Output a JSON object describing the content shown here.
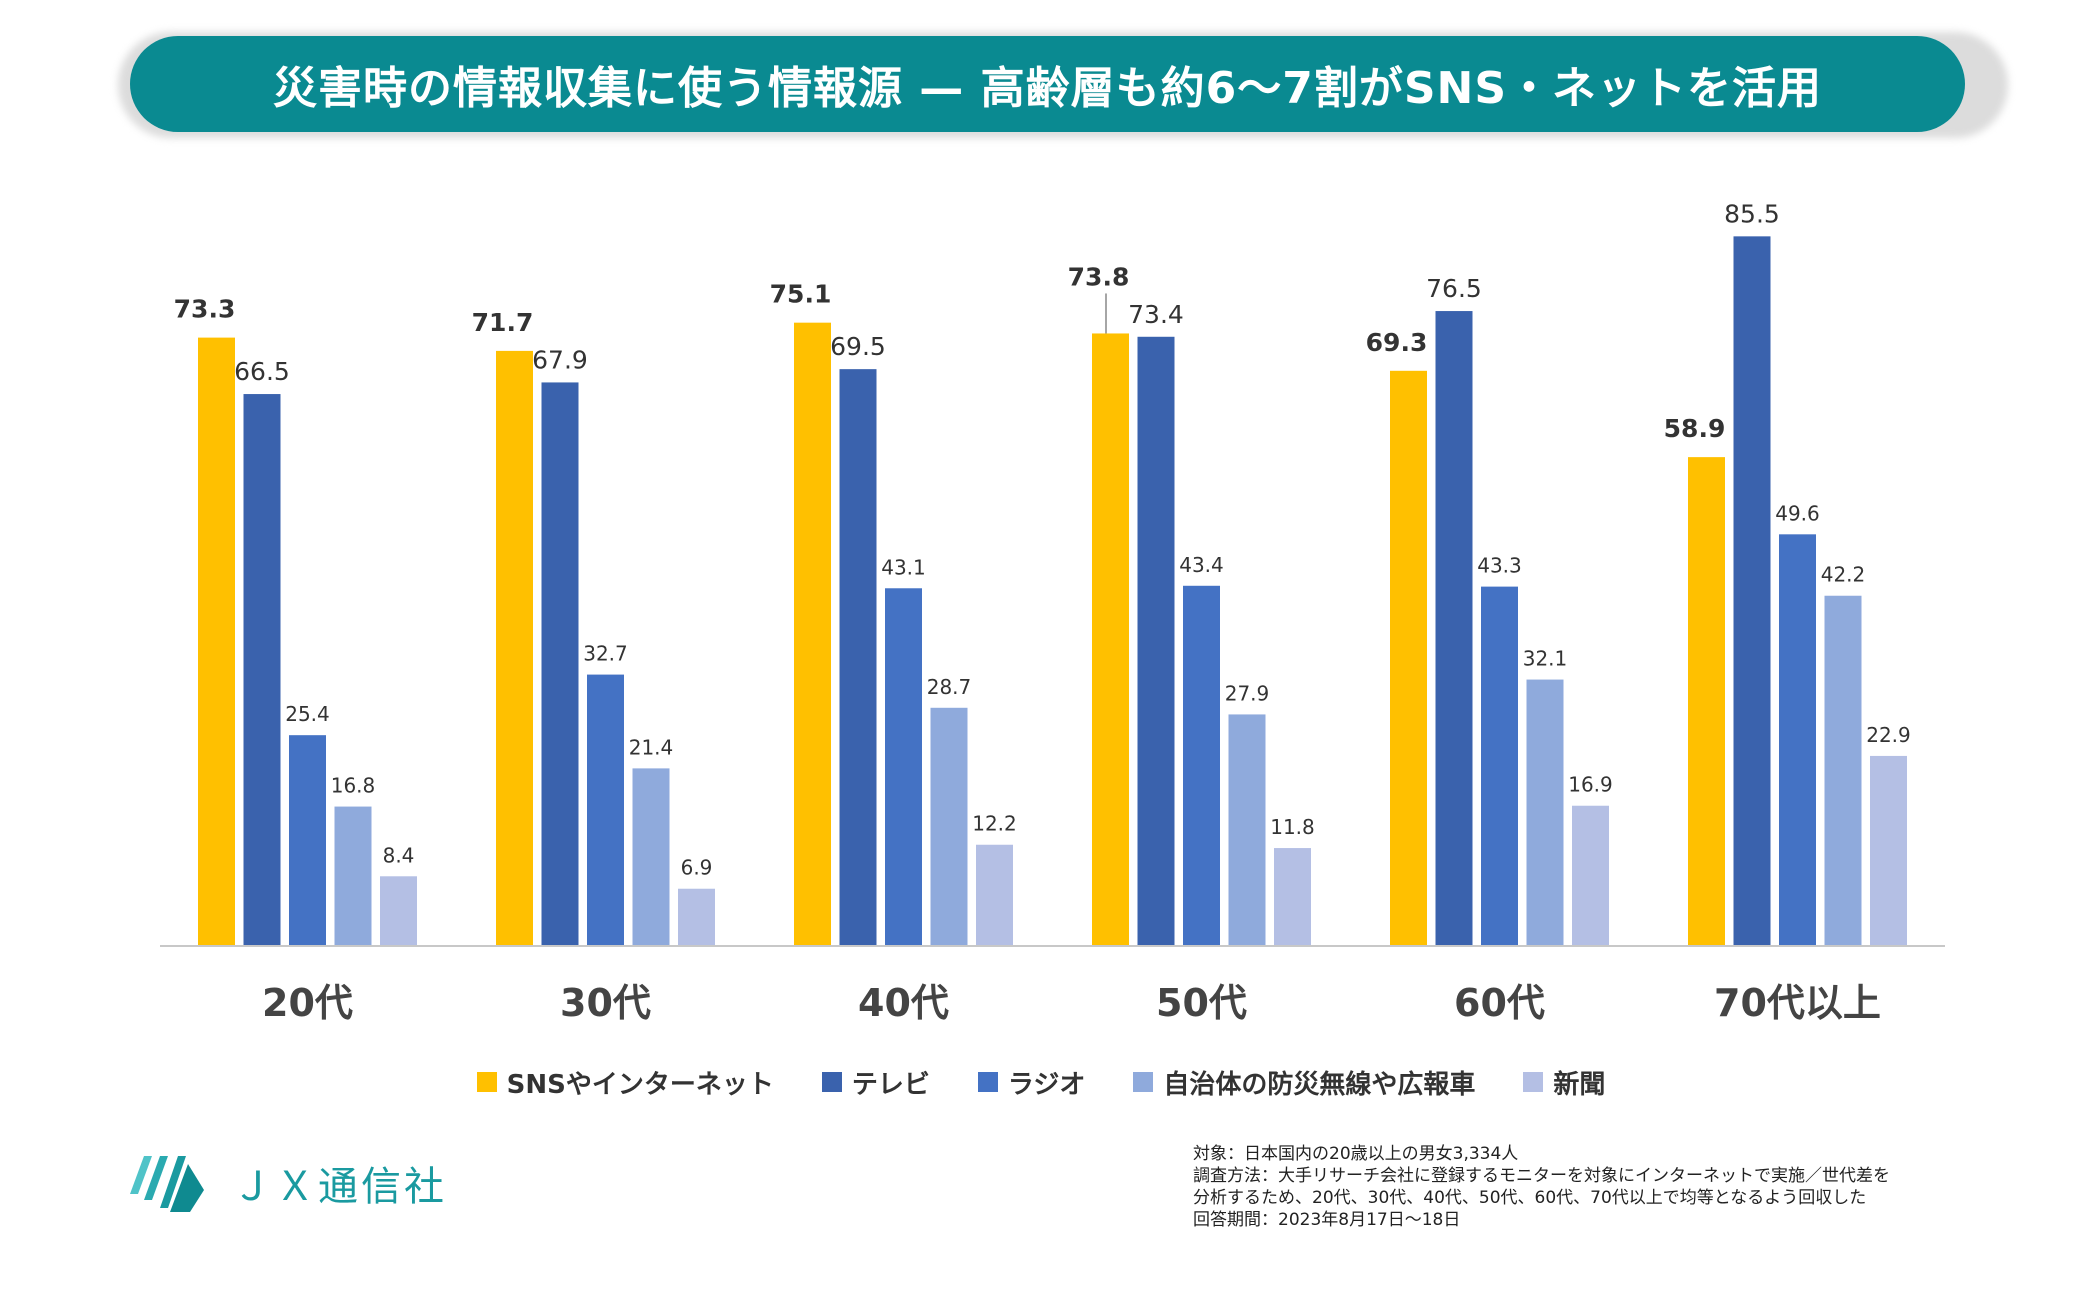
{
  "title": "災害時の情報収集に使う情報源 — 高齢層も約6〜7割がSNS・ネットを活用",
  "colors": {
    "title_bg": "#0a8a91",
    "sns": "#ffc000",
    "tv": "#3a62ad",
    "radio": "#4472c4",
    "bousai": "#8faadc",
    "newspaper": "#b4bfe4",
    "logo": "#1a9aa0"
  },
  "chart_data": {
    "type": "bar",
    "categories": [
      "20代",
      "30代",
      "40代",
      "50代",
      "60代",
      "70代以上"
    ],
    "series": [
      {
        "name": "SNSやインターネット",
        "values": [
          73.3,
          71.7,
          75.1,
          73.8,
          69.3,
          58.9
        ],
        "color": "#ffc000",
        "bold_labels": true
      },
      {
        "name": "テレビ",
        "values": [
          66.5,
          67.9,
          69.5,
          73.4,
          76.5,
          85.5
        ],
        "color": "#3a62ad"
      },
      {
        "name": "ラジオ",
        "values": [
          25.4,
          32.7,
          43.1,
          43.4,
          43.3,
          49.6
        ],
        "color": "#4472c4"
      },
      {
        "name": "自治体の防災無線や広報車",
        "values": [
          16.8,
          21.4,
          28.7,
          27.9,
          32.1,
          42.2
        ],
        "color": "#8faadc"
      },
      {
        "name": "新聞",
        "values": [
          8.4,
          6.9,
          12.2,
          11.8,
          16.9,
          22.9
        ],
        "color": "#b4bfe4"
      }
    ],
    "ylim": [
      0,
      100
    ],
    "grid": false,
    "legend_position": "bottom",
    "xlabel": "",
    "ylabel": ""
  },
  "logo": {
    "text": "ＪＸ通信社",
    "icon": "jx-logo-icon"
  },
  "notes": [
    "対象：日本国内の20歳以上の男女3,334人",
    "調査方法：大手リサーチ会社に登録するモニターを対象にインターネットで実施／世代差を",
    "分析するため、20代、30代、40代、50代、60代、70代以上で均等となるよう回収した",
    "回答期間：2023年8月17日〜18日"
  ]
}
